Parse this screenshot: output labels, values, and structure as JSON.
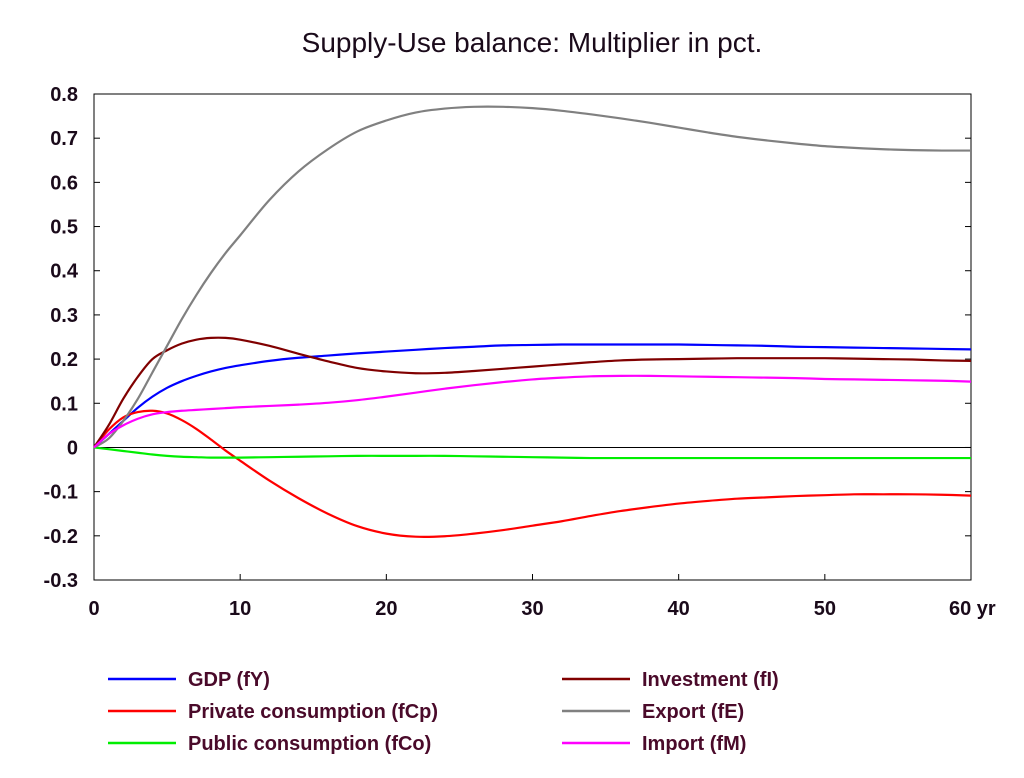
{
  "chart_data": {
    "type": "line",
    "title": "Supply-Use balance: Multiplier in pct.",
    "xlabel": "",
    "ylabel": "",
    "xlim": [
      0,
      60
    ],
    "ylim": [
      -0.3,
      0.8
    ],
    "x_ticks": [
      0,
      10,
      20,
      30,
      40,
      50,
      60
    ],
    "x_tick_labels": [
      "0",
      "10",
      "20",
      "30",
      "40",
      "50",
      "60 yr"
    ],
    "y_ticks": [
      -0.3,
      -0.2,
      -0.1,
      0,
      0.1,
      0.2,
      0.3,
      0.4,
      0.5,
      0.6,
      0.7,
      0.8
    ],
    "y_tick_labels": [
      "-0.3",
      "-0.2",
      "-0.1",
      "0",
      "0.1",
      "0.2",
      "0.3",
      "0.4",
      "0.5",
      "0.6",
      "0.7",
      "0.8"
    ],
    "grid": false,
    "zero_line": true,
    "legend_position": "bottom",
    "x": [
      0,
      1,
      2,
      3,
      4,
      5,
      6,
      7,
      8,
      9,
      10,
      12,
      14,
      16,
      18,
      20,
      22,
      24,
      26,
      28,
      30,
      32,
      34,
      36,
      38,
      40,
      42,
      44,
      46,
      48,
      50,
      52,
      54,
      56,
      58,
      60
    ],
    "series": [
      {
        "name": "GDP (fY)",
        "color": "#0000ff",
        "values": [
          0,
          0.03,
          0.06,
          0.09,
          0.115,
          0.135,
          0.15,
          0.162,
          0.172,
          0.18,
          0.186,
          0.196,
          0.203,
          0.208,
          0.213,
          0.217,
          0.221,
          0.225,
          0.228,
          0.231,
          0.232,
          0.233,
          0.233,
          0.233,
          0.233,
          0.233,
          0.232,
          0.231,
          0.23,
          0.228,
          0.227,
          0.226,
          0.225,
          0.224,
          0.223,
          0.222
        ]
      },
      {
        "name": "Private consumption (fCp)",
        "color": "#ff0000",
        "values": [
          0,
          0.04,
          0.068,
          0.08,
          0.083,
          0.077,
          0.062,
          0.042,
          0.018,
          -0.007,
          -0.03,
          -0.075,
          -0.115,
          -0.15,
          -0.178,
          -0.195,
          -0.202,
          -0.201,
          -0.195,
          -0.187,
          -0.177,
          -0.167,
          -0.155,
          -0.144,
          -0.135,
          -0.127,
          -0.121,
          -0.116,
          -0.113,
          -0.11,
          -0.108,
          -0.106,
          -0.106,
          -0.106,
          -0.107,
          -0.109
        ]
      },
      {
        "name": "Public consumption (fCo)",
        "color": "#00ee00",
        "values": [
          0,
          -0.004,
          -0.008,
          -0.012,
          -0.016,
          -0.019,
          -0.021,
          -0.022,
          -0.023,
          -0.023,
          -0.023,
          -0.022,
          -0.021,
          -0.02,
          -0.019,
          -0.019,
          -0.019,
          -0.019,
          -0.02,
          -0.021,
          -0.022,
          -0.023,
          -0.024,
          -0.024,
          -0.024,
          -0.024,
          -0.024,
          -0.024,
          -0.024,
          -0.024,
          -0.024,
          -0.024,
          -0.024,
          -0.024,
          -0.024,
          -0.024
        ]
      },
      {
        "name": "Investment (fI)",
        "color": "#800000",
        "values": [
          0,
          0.05,
          0.11,
          0.16,
          0.2,
          0.22,
          0.235,
          0.244,
          0.248,
          0.248,
          0.244,
          0.23,
          0.212,
          0.195,
          0.18,
          0.172,
          0.168,
          0.169,
          0.173,
          0.178,
          0.183,
          0.188,
          0.193,
          0.197,
          0.199,
          0.2,
          0.201,
          0.202,
          0.202,
          0.202,
          0.202,
          0.201,
          0.2,
          0.199,
          0.197,
          0.196
        ]
      },
      {
        "name": "Export (fE)",
        "color": "#808080",
        "values": [
          0,
          0.02,
          0.06,
          0.11,
          0.17,
          0.23,
          0.29,
          0.345,
          0.395,
          0.44,
          0.48,
          0.56,
          0.625,
          0.675,
          0.715,
          0.74,
          0.758,
          0.767,
          0.771,
          0.771,
          0.768,
          0.762,
          0.754,
          0.745,
          0.735,
          0.724,
          0.713,
          0.703,
          0.695,
          0.688,
          0.682,
          0.678,
          0.675,
          0.673,
          0.672,
          0.672
        ]
      },
      {
        "name": "Import (fM)",
        "color": "#ff00ff",
        "values": [
          0,
          0.03,
          0.05,
          0.065,
          0.075,
          0.08,
          0.083,
          0.085,
          0.087,
          0.089,
          0.091,
          0.094,
          0.097,
          0.101,
          0.107,
          0.115,
          0.124,
          0.133,
          0.141,
          0.148,
          0.154,
          0.158,
          0.161,
          0.162,
          0.162,
          0.161,
          0.16,
          0.159,
          0.158,
          0.157,
          0.155,
          0.154,
          0.153,
          0.152,
          0.151,
          0.149
        ]
      }
    ]
  }
}
